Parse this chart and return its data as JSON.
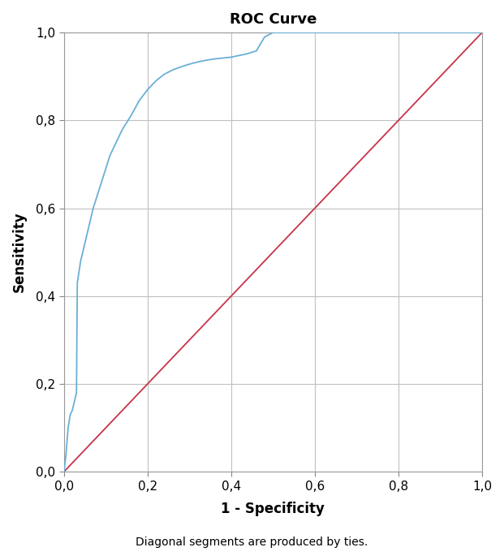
{
  "title": "ROC Curve",
  "xlabel": "1 - Specificity",
  "ylabel": "Sensitivity",
  "footnote": "Diagonal segments are produced by ties.",
  "title_fontsize": 13,
  "label_fontsize": 12,
  "tick_fontsize": 11,
  "footnote_fontsize": 10,
  "roc_color": "#6aafd6",
  "diagonal_color": "#c8334a",
  "background_color": "#ffffff",
  "grid_color": "#c0c0c0",
  "roc_x": [
    0.0,
    0.005,
    0.01,
    0.015,
    0.02,
    0.025,
    0.03,
    0.032,
    0.04,
    0.05,
    0.06,
    0.07,
    0.08,
    0.09,
    0.1,
    0.11,
    0.12,
    0.14,
    0.16,
    0.18,
    0.2,
    0.22,
    0.24,
    0.26,
    0.28,
    0.3,
    0.32,
    0.34,
    0.36,
    0.38,
    0.4,
    0.405,
    0.41,
    0.415,
    0.42,
    0.425,
    0.43,
    0.435,
    0.44,
    0.445,
    0.46,
    0.48,
    0.5,
    1.0
  ],
  "roc_y": [
    0.0,
    0.04,
    0.1,
    0.13,
    0.14,
    0.16,
    0.18,
    0.43,
    0.48,
    0.52,
    0.56,
    0.6,
    0.63,
    0.66,
    0.69,
    0.72,
    0.74,
    0.78,
    0.81,
    0.845,
    0.87,
    0.89,
    0.905,
    0.915,
    0.922,
    0.928,
    0.933,
    0.937,
    0.94,
    0.942,
    0.944,
    0.945,
    0.946,
    0.947,
    0.948,
    0.949,
    0.95,
    0.951,
    0.952,
    0.954,
    0.958,
    0.99,
    1.0,
    1.0
  ],
  "xlim": [
    0.0,
    1.0
  ],
  "ylim": [
    0.0,
    1.0
  ],
  "xticks": [
    0.0,
    0.2,
    0.4,
    0.6,
    0.8,
    1.0
  ],
  "yticks": [
    0.0,
    0.2,
    0.4,
    0.6,
    0.8,
    1.0
  ],
  "xticklabels": [
    "0,0",
    "0,2",
    "0,4",
    "0,6",
    "0,8",
    "1,0"
  ],
  "yticklabels": [
    "0,0",
    "0,2",
    "0,4",
    "0,6",
    "0,8",
    "1,0"
  ]
}
